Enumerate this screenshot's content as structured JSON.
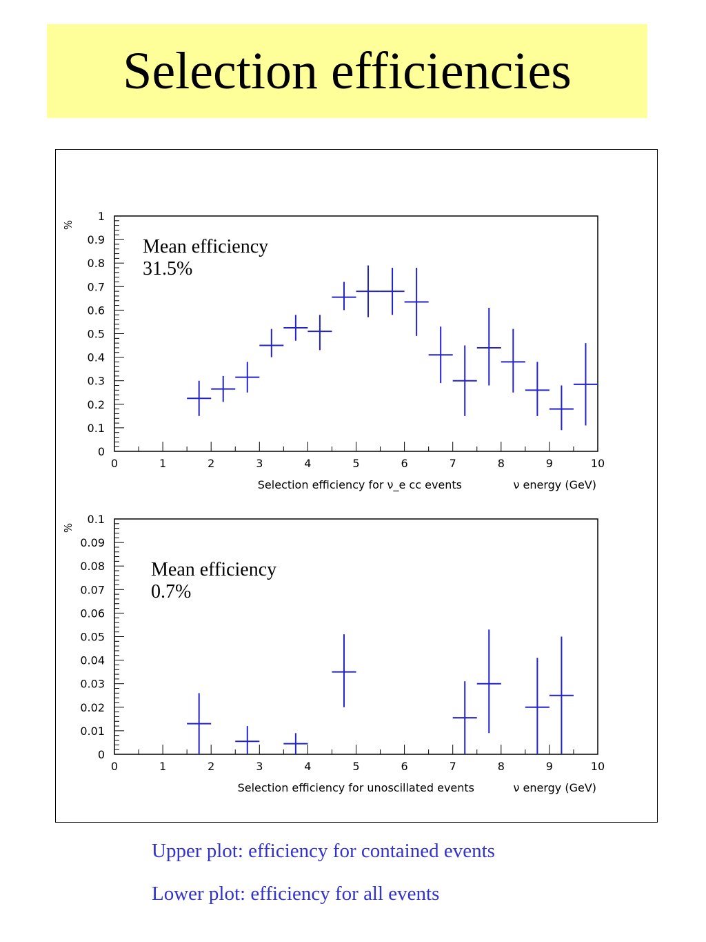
{
  "title": "Selection efficiencies",
  "captions": {
    "upper": "Upper plot:  efficiency for contained events",
    "lower": "Lower plot:  efficiency for all events"
  },
  "colors": {
    "title_bg": "#ffff99",
    "series": "#2222cc",
    "caption": "#3333cc"
  },
  "chart_data": [
    {
      "type": "scatter",
      "ylabel": "%",
      "xlabel_left": "Selection efficiency for ν_e cc events",
      "xlabel_right": "ν energy (GeV)",
      "annotation": [
        "Mean efficiency",
        "31.5%"
      ],
      "xlim": [
        0,
        10
      ],
      "ylim": [
        0,
        1
      ],
      "xticks": [
        "0",
        "1",
        "2",
        "3",
        "4",
        "5",
        "6",
        "7",
        "8",
        "9",
        "10"
      ],
      "yticks": [
        "0",
        "0.1",
        "0.2",
        "0.3",
        "0.4",
        "0.5",
        "0.6",
        "0.7",
        "0.8",
        "0.9",
        "1"
      ],
      "x_halfwidth": 0.25,
      "points": [
        {
          "x": 1.75,
          "y": 0.225,
          "err_low": 0.15,
          "err_high": 0.3
        },
        {
          "x": 2.25,
          "y": 0.265,
          "err_low": 0.21,
          "err_high": 0.32
        },
        {
          "x": 2.75,
          "y": 0.315,
          "err_low": 0.25,
          "err_high": 0.38
        },
        {
          "x": 3.25,
          "y": 0.45,
          "err_low": 0.4,
          "err_high": 0.52
        },
        {
          "x": 3.75,
          "y": 0.525,
          "err_low": 0.47,
          "err_high": 0.58
        },
        {
          "x": 4.25,
          "y": 0.51,
          "err_low": 0.43,
          "err_high": 0.58
        },
        {
          "x": 4.75,
          "y": 0.655,
          "err_low": 0.6,
          "err_high": 0.72
        },
        {
          "x": 5.25,
          "y": 0.68,
          "err_low": 0.57,
          "err_high": 0.79
        },
        {
          "x": 5.75,
          "y": 0.68,
          "err_low": 0.58,
          "err_high": 0.78
        },
        {
          "x": 6.25,
          "y": 0.635,
          "err_low": 0.49,
          "err_high": 0.78
        },
        {
          "x": 6.75,
          "y": 0.41,
          "err_low": 0.29,
          "err_high": 0.53
        },
        {
          "x": 7.25,
          "y": 0.3,
          "err_low": 0.15,
          "err_high": 0.45
        },
        {
          "x": 7.75,
          "y": 0.44,
          "err_low": 0.28,
          "err_high": 0.61
        },
        {
          "x": 8.25,
          "y": 0.38,
          "err_low": 0.25,
          "err_high": 0.52
        },
        {
          "x": 8.75,
          "y": 0.26,
          "err_low": 0.15,
          "err_high": 0.38
        },
        {
          "x": 9.25,
          "y": 0.18,
          "err_low": 0.09,
          "err_high": 0.28
        },
        {
          "x": 9.75,
          "y": 0.285,
          "err_low": 0.11,
          "err_high": 0.46
        }
      ]
    },
    {
      "type": "scatter",
      "ylabel": "%",
      "xlabel_left": "Selection efficiency for unoscillated events",
      "xlabel_right": "ν energy (GeV)",
      "annotation": [
        "Mean efficiency",
        "0.7%"
      ],
      "xlim": [
        0,
        10
      ],
      "ylim": [
        0,
        0.1
      ],
      "xticks": [
        "0",
        "1",
        "2",
        "3",
        "4",
        "5",
        "6",
        "7",
        "8",
        "9",
        "10"
      ],
      "yticks": [
        "0",
        "0.01",
        "0.02",
        "0.03",
        "0.04",
        "0.05",
        "0.06",
        "0.07",
        "0.08",
        "0.09",
        "0.1"
      ],
      "x_halfwidth": 0.25,
      "points": [
        {
          "x": 1.75,
          "y": 0.013,
          "err_low": 0.0,
          "err_high": 0.026
        },
        {
          "x": 2.75,
          "y": 0.0055,
          "err_low": 0.0,
          "err_high": 0.012
        },
        {
          "x": 3.75,
          "y": 0.0045,
          "err_low": 0.0,
          "err_high": 0.009
        },
        {
          "x": 4.75,
          "y": 0.035,
          "err_low": 0.02,
          "err_high": 0.051
        },
        {
          "x": 7.25,
          "y": 0.0155,
          "err_low": 0.0,
          "err_high": 0.031
        },
        {
          "x": 7.75,
          "y": 0.03,
          "err_low": 0.009,
          "err_high": 0.053
        },
        {
          "x": 8.75,
          "y": 0.02,
          "err_low": 0.0,
          "err_high": 0.041
        },
        {
          "x": 9.25,
          "y": 0.025,
          "err_low": 0.0,
          "err_high": 0.05
        }
      ]
    }
  ]
}
